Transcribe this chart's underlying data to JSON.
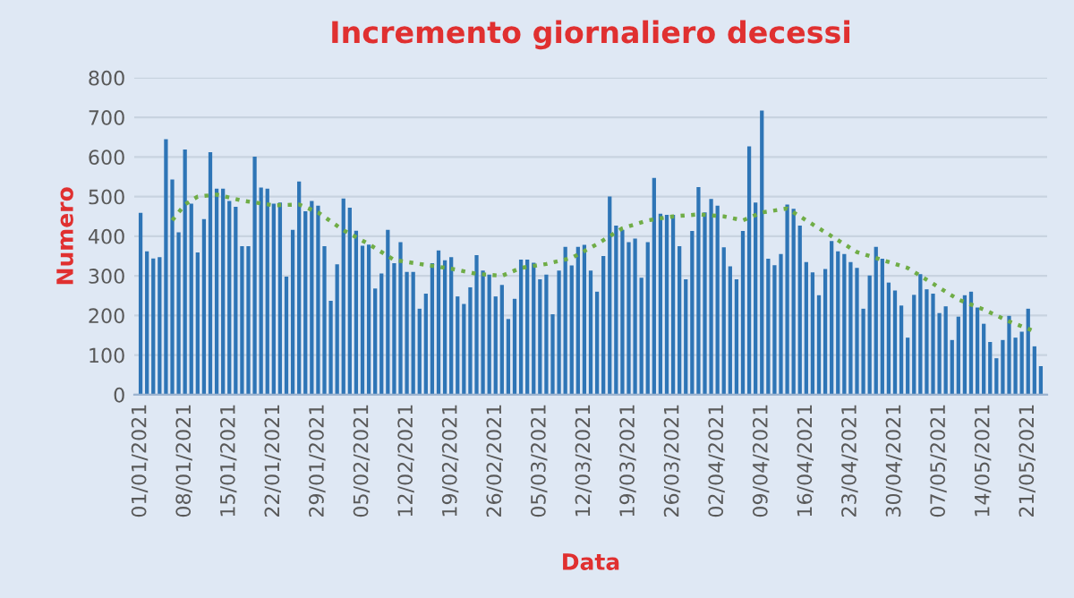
{
  "chart_data": {
    "type": "bar",
    "title": "Incremento giornaliero decessi",
    "xlabel": "Data",
    "ylabel": "Numero",
    "x": [
      "2021-01-01",
      "2021-01-02",
      "2021-01-03",
      "2021-01-04",
      "2021-01-05",
      "2021-01-06",
      "2021-01-07",
      "2021-01-08",
      "2021-01-09",
      "2021-01-10",
      "2021-01-11",
      "2021-01-12",
      "2021-01-13",
      "2021-01-14",
      "2021-01-15",
      "2021-01-16",
      "2021-01-17",
      "2021-01-18",
      "2021-01-19",
      "2021-01-20",
      "2021-01-21",
      "2021-01-22",
      "2021-01-23",
      "2021-01-24",
      "2021-01-25",
      "2021-01-26",
      "2021-01-27",
      "2021-01-28",
      "2021-01-29",
      "2021-01-30",
      "2021-01-31",
      "2021-02-01",
      "2021-02-02",
      "2021-02-03",
      "2021-02-04",
      "2021-02-05",
      "2021-02-06",
      "2021-02-07",
      "2021-02-08",
      "2021-02-09",
      "2021-02-10",
      "2021-02-11",
      "2021-02-12",
      "2021-02-13",
      "2021-02-14",
      "2021-02-15",
      "2021-02-16",
      "2021-02-17",
      "2021-02-18",
      "2021-02-19",
      "2021-02-20",
      "2021-02-21",
      "2021-02-22",
      "2021-02-23",
      "2021-02-24",
      "2021-02-25",
      "2021-02-26",
      "2021-02-27",
      "2021-02-28",
      "2021-03-01",
      "2021-03-02",
      "2021-03-03",
      "2021-03-04",
      "2021-03-05",
      "2021-03-06",
      "2021-03-07",
      "2021-03-08",
      "2021-03-09",
      "2021-03-10",
      "2021-03-11",
      "2021-03-12",
      "2021-03-13",
      "2021-03-14",
      "2021-03-15",
      "2021-03-16",
      "2021-03-17",
      "2021-03-18",
      "2021-03-19",
      "2021-03-20",
      "2021-03-21",
      "2021-03-22",
      "2021-03-23",
      "2021-03-24",
      "2021-03-25",
      "2021-03-26",
      "2021-03-27",
      "2021-03-28",
      "2021-03-29",
      "2021-03-30",
      "2021-03-31",
      "2021-04-01",
      "2021-04-02",
      "2021-04-03",
      "2021-04-04",
      "2021-04-05",
      "2021-04-06",
      "2021-04-07",
      "2021-04-08",
      "2021-04-09",
      "2021-04-10",
      "2021-04-11",
      "2021-04-12",
      "2021-04-13",
      "2021-04-14",
      "2021-04-15",
      "2021-04-16",
      "2021-04-17",
      "2021-04-18",
      "2021-04-19",
      "2021-04-20",
      "2021-04-21",
      "2021-04-22",
      "2021-04-23",
      "2021-04-24",
      "2021-04-25",
      "2021-04-26",
      "2021-04-27",
      "2021-04-28",
      "2021-04-29",
      "2021-04-30",
      "2021-05-01",
      "2021-05-02",
      "2021-05-03",
      "2021-05-04",
      "2021-05-05",
      "2021-05-06",
      "2021-05-07",
      "2021-05-08",
      "2021-05-09",
      "2021-05-10",
      "2021-05-11",
      "2021-05-12",
      "2021-05-13",
      "2021-05-14",
      "2021-05-15",
      "2021-05-16",
      "2021-05-17",
      "2021-05-18",
      "2021-05-19",
      "2021-05-20",
      "2021-05-21",
      "2021-05-22",
      "2021-05-23"
    ],
    "series": [
      {
        "color": "#2e75b6",
        "values": [
          459,
          362,
          344,
          347,
          645,
          543,
          410,
          619,
          482,
          359,
          443,
          612,
          520,
          520,
          489,
          474,
          375,
          375,
          601,
          523,
          520,
          482,
          485,
          298,
          416,
          538,
          463,
          489,
          477,
          375,
          237,
          329,
          495,
          472,
          414,
          376,
          379,
          268,
          306,
          416,
          332,
          385,
          310,
          310,
          217,
          255,
          332,
          364,
          339,
          347,
          248,
          229,
          271,
          352,
          313,
          303,
          248,
          277,
          191,
          242,
          341,
          341,
          333,
          291,
          303,
          203,
          313,
          373,
          326,
          373,
          378,
          313,
          260,
          350,
          500,
          427,
          416,
          385,
          394,
          295,
          385,
          547,
          457,
          454,
          454,
          375,
          291,
          413,
          524,
          460,
          494,
          477,
          372,
          324,
          291,
          413,
          627,
          485,
          717,
          343,
          327,
          355,
          480,
          469,
          427,
          335,
          309,
          251,
          317,
          388,
          362,
          355,
          335,
          320,
          217,
          301,
          373,
          343,
          283,
          263,
          225,
          144,
          252,
          304,
          266,
          255,
          206,
          223,
          138,
          197,
          251,
          260,
          220,
          179,
          133,
          92,
          138,
          199,
          144,
          159,
          217,
          122,
          72
        ]
      },
      {
        "type": "line",
        "color": "#70ad47",
        "line_style": "dotted",
        "x": [
          "2021-01-06",
          "2021-01-08",
          "2021-01-10",
          "2021-01-13",
          "2021-01-17",
          "2021-01-22",
          "2021-01-26",
          "2021-01-29",
          "2021-02-02",
          "2021-02-06",
          "2021-02-10",
          "2021-02-14",
          "2021-02-19",
          "2021-02-23",
          "2021-02-27",
          "2021-03-02",
          "2021-03-06",
          "2021-03-10",
          "2021-03-14",
          "2021-03-18",
          "2021-03-22",
          "2021-03-26",
          "2021-03-30",
          "2021-04-03",
          "2021-04-06",
          "2021-04-09",
          "2021-04-13",
          "2021-04-16",
          "2021-04-20",
          "2021-04-24",
          "2021-04-28",
          "2021-05-02",
          "2021-05-06",
          "2021-05-10",
          "2021-05-14",
          "2021-05-18",
          "2021-05-22"
        ],
        "values": [
          440,
          480,
          500,
          505,
          490,
          478,
          480,
          460,
          415,
          380,
          340,
          330,
          318,
          305,
          300,
          320,
          330,
          345,
          380,
          420,
          440,
          450,
          455,
          450,
          440,
          460,
          470,
          440,
          400,
          360,
          340,
          320,
          280,
          240,
          215,
          185,
          160
        ]
      }
    ],
    "ylim": [
      0,
      800
    ],
    "yticks": [
      0,
      100,
      200,
      300,
      400,
      500,
      600,
      700,
      800
    ],
    "xlim": [
      "2020-12-31",
      "2021-05-24"
    ],
    "xticks": [
      {
        "value": "2021-01-01",
        "label": "01/01/2021"
      },
      {
        "value": "2021-01-08",
        "label": "08/01/2021"
      },
      {
        "value": "2021-01-15",
        "label": "15/01/2021"
      },
      {
        "value": "2021-01-22",
        "label": "22/01/2021"
      },
      {
        "value": "2021-01-29",
        "label": "29/01/2021"
      },
      {
        "value": "2021-02-05",
        "label": "05/02/2021"
      },
      {
        "value": "2021-02-12",
        "label": "12/02/2021"
      },
      {
        "value": "2021-02-19",
        "label": "19/02/2021"
      },
      {
        "value": "2021-02-26",
        "label": "26/02/2021"
      },
      {
        "value": "2021-03-05",
        "label": "05/03/2021"
      },
      {
        "value": "2021-03-12",
        "label": "12/03/2021"
      },
      {
        "value": "2021-03-19",
        "label": "19/03/2021"
      },
      {
        "value": "2021-03-26",
        "label": "26/03/2021"
      },
      {
        "value": "2021-04-02",
        "label": "02/04/2021"
      },
      {
        "value": "2021-04-09",
        "label": "09/04/2021"
      },
      {
        "value": "2021-04-16",
        "label": "16/04/2021"
      },
      {
        "value": "2021-04-23",
        "label": "23/04/2021"
      },
      {
        "value": "2021-04-30",
        "label": "30/04/2021"
      },
      {
        "value": "2021-05-07",
        "label": "07/05/2021"
      },
      {
        "value": "2021-05-14",
        "label": "14/05/2021"
      },
      {
        "value": "2021-05-21",
        "label": "21/05/2021"
      }
    ],
    "grid": "y"
  }
}
